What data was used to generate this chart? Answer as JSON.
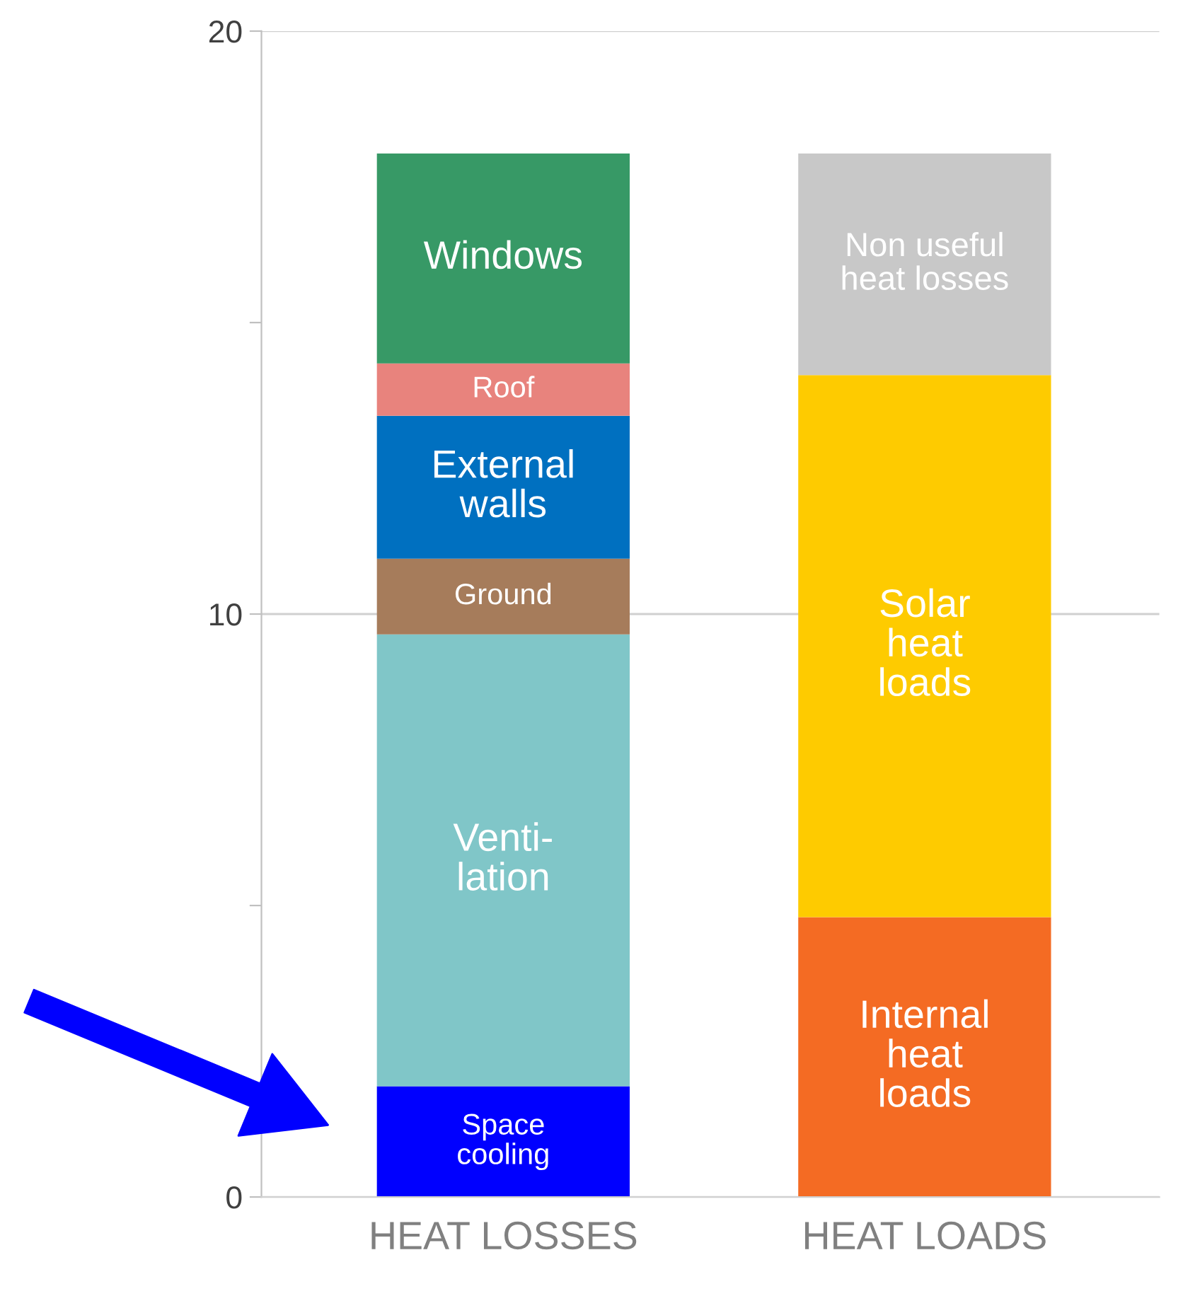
{
  "chart_data": {
    "type": "bar",
    "stacked": true,
    "categories": [
      "HEAT LOSSES",
      "HEAT LOADS"
    ],
    "ylim": [
      0,
      20
    ],
    "yticks": [
      0,
      {
        "value": 5,
        "label": null
      },
      10,
      {
        "value": 15,
        "label": null
      },
      20
    ],
    "grid": "y",
    "legend": false,
    "series": [
      {
        "name": "Space\ncooling",
        "color": "#0000ff",
        "values": [
          1.9,
          null
        ]
      },
      {
        "name": "Venti-\nlation",
        "color": "#80c6c8",
        "values": [
          7.75,
          null
        ]
      },
      {
        "name": "Ground",
        "color": "#a67c5b",
        "values": [
          1.3,
          null
        ]
      },
      {
        "name": "External\nwalls",
        "color": "#0070c0",
        "values": [
          2.45,
          null
        ]
      },
      {
        "name": "Roof",
        "color": "#e8837d",
        "values": [
          0.9,
          null
        ]
      },
      {
        "name": "Windows",
        "color": "#379966",
        "values": [
          3.6,
          null
        ]
      },
      {
        "name": "Internal\nheat\nloads",
        "color": "#f46b23",
        "values": [
          null,
          4.8
        ]
      },
      {
        "name": "Solar\nheat\nloads",
        "color": "#fecb00",
        "values": [
          null,
          9.3
        ]
      },
      {
        "name": "Non useful\nheat losses",
        "color": "#c8c8c8",
        "values": [
          null,
          3.8
        ]
      }
    ]
  }
}
